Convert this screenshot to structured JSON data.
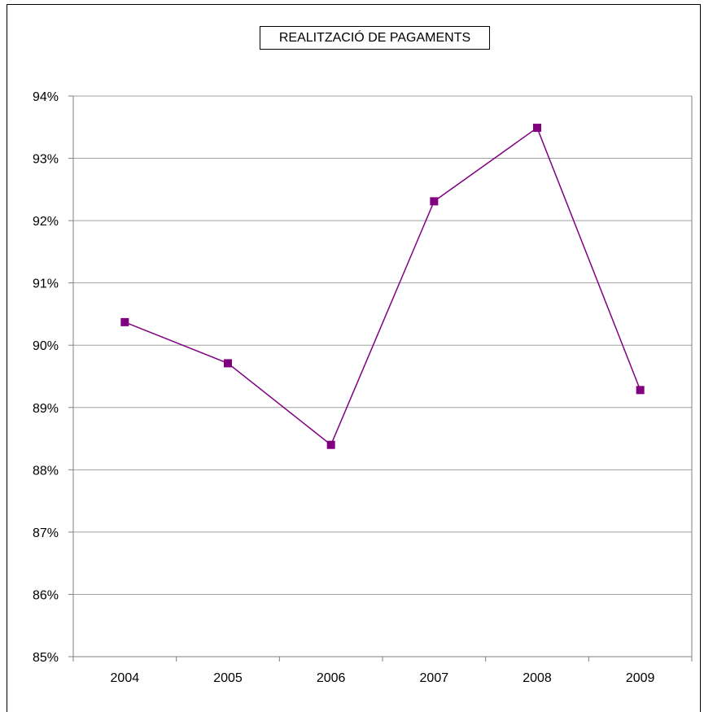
{
  "chart_data": {
    "type": "line",
    "title": "REALITZACIÓ DE PAGAMENTS",
    "xlabel": "",
    "ylabel": "",
    "categories": [
      "2004",
      "2005",
      "2006",
      "2007",
      "2008",
      "2009"
    ],
    "series": [
      {
        "values": [
          90.37,
          89.71,
          88.4,
          92.31,
          93.49,
          89.28
        ]
      }
    ],
    "ylim": [
      85,
      94
    ],
    "ytick_step": 1,
    "ytick_suffix": "%",
    "grid": true,
    "legend": "none",
    "colors": {
      "series": "#800080",
      "grid": "#a0a0a0",
      "axis": "#808080"
    }
  }
}
